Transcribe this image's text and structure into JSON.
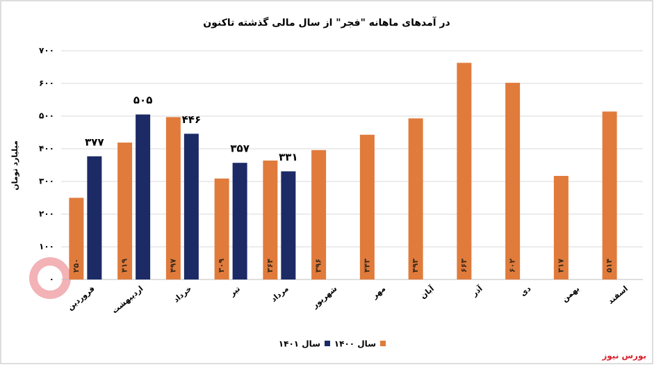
{
  "chart_data": {
    "type": "bar",
    "title": "در آمدهای ماهانه \"فجر\" از سال مالی گذشته تاکنون",
    "y_label": "میلیارد تومان",
    "source": "بورس نیوز",
    "categories": [
      "فروردین",
      "اردیبهشت",
      "خرداد",
      "تیر",
      "مرداد",
      "شهریور",
      "مهر",
      "آبان",
      "آذر",
      "دی",
      "بهمن",
      "اسفند"
    ],
    "series": [
      {
        "name": "سال ۱۴۰۰",
        "color": "#e07b3c",
        "values": [
          250,
          419,
          497,
          309,
          364,
          396,
          443,
          493,
          663,
          602,
          317,
          514
        ],
        "value_labels": [
          "۲۵۰",
          "۴۱۹",
          "۴۹۷",
          "۳۰۹",
          "۳۶۴",
          "۳۹۶",
          "۴۴۳",
          "۴۹۳",
          "۶۶۳",
          "۶۰۲",
          "۳۱۷",
          "۵۱۴"
        ]
      },
      {
        "name": "سال ۱۴۰۱",
        "color": "#1c2a66",
        "values": [
          377,
          505,
          446,
          357,
          331,
          null,
          null,
          null,
          null,
          null,
          null,
          null
        ],
        "value_labels": [
          "۳۷۷",
          "۵۰۵",
          "۴۴۶",
          "۳۵۷",
          "۳۳۱",
          null,
          null,
          null,
          null,
          null,
          null,
          null
        ]
      }
    ],
    "ylim": [
      0,
      700
    ],
    "yticks": [
      {
        "value": 0,
        "label": "۰"
      },
      {
        "value": 100,
        "label": "۱۰۰"
      },
      {
        "value": 200,
        "label": "۲۰۰"
      },
      {
        "value": 300,
        "label": "۳۰۰"
      },
      {
        "value": 400,
        "label": "۴۰۰"
      },
      {
        "value": 500,
        "label": "۵۰۰"
      },
      {
        "value": 600,
        "label": "۶۰۰"
      },
      {
        "value": 700,
        "label": "۷۰۰"
      }
    ],
    "grid": true
  }
}
